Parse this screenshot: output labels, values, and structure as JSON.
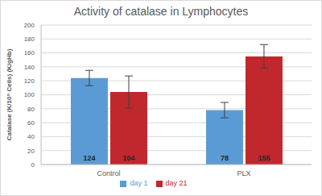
{
  "chart_data": {
    "type": "bar",
    "title": "Activity of catalase in Lymphocytes",
    "y_label": "Catalase (K/10⁹ Cells) (K/gHb)",
    "categories": [
      "Control",
      "PLX"
    ],
    "series": [
      {
        "name": "day 1",
        "color": "#5b9bd5",
        "values": [
          124,
          78
        ],
        "errors": [
          11,
          11
        ]
      },
      {
        "name": "day 21",
        "color": "#c0282d",
        "values": [
          104,
          155
        ],
        "errors": [
          23,
          17
        ]
      }
    ],
    "ylim": [
      0,
      200
    ],
    "yticks": [
      0,
      20,
      40,
      60,
      80,
      100,
      120,
      140,
      160,
      180,
      200
    ],
    "grid": true,
    "data_labels": true,
    "legend": "bottom"
  }
}
